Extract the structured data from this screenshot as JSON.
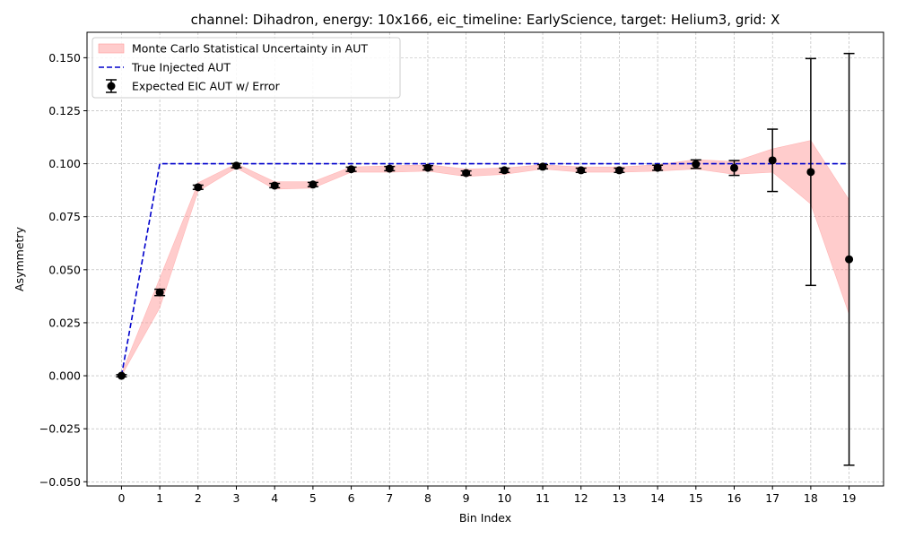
{
  "chart_data": {
    "type": "line",
    "title": "channel: Dihadron, energy: 10x166, eic_timeline: EarlyScience, target: Helium3, grid: X",
    "xlabel": "Bin Index",
    "ylabel": "Asymmetry",
    "xlim": [
      -0.9,
      19.9
    ],
    "ylim": [
      -0.052,
      0.162
    ],
    "xticks": [
      0,
      1,
      2,
      3,
      4,
      5,
      6,
      7,
      8,
      9,
      10,
      11,
      12,
      13,
      14,
      15,
      16,
      17,
      18,
      19
    ],
    "yticks": [
      -0.05,
      -0.025,
      0.0,
      0.025,
      0.05,
      0.075,
      0.1,
      0.125,
      0.15
    ],
    "ytick_labels": [
      "−0.050",
      "−0.025",
      "0.000",
      "0.025",
      "0.050",
      "0.075",
      "0.100",
      "0.125",
      "0.150"
    ],
    "grid": true,
    "legend_position": "top-left",
    "x": [
      0,
      1,
      2,
      3,
      4,
      5,
      6,
      7,
      8,
      9,
      10,
      11,
      12,
      13,
      14,
      15,
      16,
      17,
      18,
      19
    ],
    "series": [
      {
        "name": "Monte Carlo Statistical Uncertainty in AUT",
        "kind": "band",
        "color": "#ff9999",
        "lower": [
          0.0,
          0.032,
          0.087,
          0.098,
          0.088,
          0.0885,
          0.096,
          0.096,
          0.0965,
          0.094,
          0.095,
          0.0975,
          0.096,
          0.096,
          0.0965,
          0.0975,
          0.095,
          0.096,
          0.081,
          0.029
        ],
        "upper": [
          0.001,
          0.046,
          0.091,
          0.1,
          0.0915,
          0.0915,
          0.0985,
          0.099,
          0.0995,
          0.0975,
          0.098,
          0.0995,
          0.0985,
          0.0985,
          0.0995,
          0.102,
          0.101,
          0.107,
          0.111,
          0.083
        ]
      },
      {
        "name": "True Injected AUT",
        "kind": "line",
        "color": "#0000cc",
        "values": [
          0.0,
          0.1,
          0.1,
          0.1,
          0.1,
          0.1,
          0.1,
          0.1,
          0.1,
          0.1,
          0.1,
          0.1,
          0.1,
          0.1,
          0.1,
          0.1,
          0.1,
          0.1,
          0.1,
          0.1
        ]
      },
      {
        "name": "Expected EIC AUT w/ Error",
        "kind": "errorbar",
        "color": "#000000",
        "values": [
          0.0,
          0.0393,
          0.0889,
          0.0991,
          0.0897,
          0.0902,
          0.0974,
          0.0977,
          0.0981,
          0.0956,
          0.0969,
          0.0986,
          0.0969,
          0.0969,
          0.0981,
          0.0998,
          0.098,
          0.1016,
          0.0961,
          0.0549
        ],
        "errors": [
          0.0005,
          0.0015,
          0.001,
          0.001,
          0.001,
          0.001,
          0.001,
          0.001,
          0.001,
          0.001,
          0.001,
          0.001,
          0.001,
          0.001,
          0.0012,
          0.002,
          0.0035,
          0.0147,
          0.0535,
          0.0971
        ]
      }
    ]
  }
}
